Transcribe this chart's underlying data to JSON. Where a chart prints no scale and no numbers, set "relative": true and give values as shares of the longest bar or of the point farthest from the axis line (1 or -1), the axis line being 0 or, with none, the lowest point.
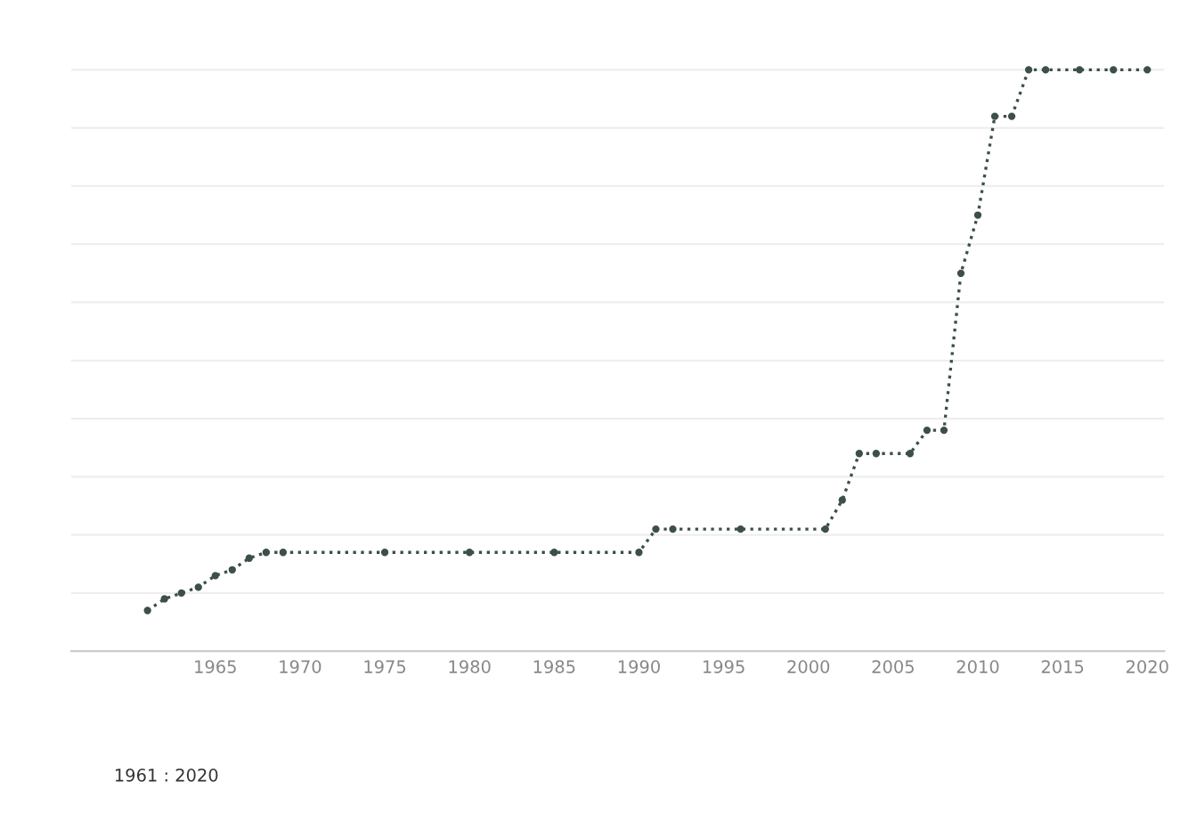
{
  "chart_data": {
    "type": "line",
    "relative": true,
    "x": [
      1961,
      1962,
      1963,
      1964,
      1965,
      1966,
      1967,
      1968,
      1969,
      1975,
      1980,
      1985,
      1990,
      1991,
      1992,
      1996,
      2001,
      2002,
      2003,
      2004,
      2006,
      2007,
      2008,
      2009,
      2010,
      2011,
      2012,
      2013,
      2014,
      2016,
      2018,
      2020
    ],
    "series": [
      {
        "color": "#3d4f4c",
        "values": [
          0.07,
          0.09,
          0.1,
          0.11,
          0.13,
          0.14,
          0.16,
          0.17,
          0.17,
          0.17,
          0.17,
          0.17,
          0.17,
          0.21,
          0.21,
          0.21,
          0.21,
          0.26,
          0.34,
          0.34,
          0.34,
          0.38,
          0.38,
          0.65,
          0.75,
          0.92,
          0.92,
          1,
          1,
          1,
          1,
          1
        ]
      }
    ],
    "xlim": [
      1956.5,
      2021
    ],
    "xticks": [
      1965,
      1970,
      1975,
      1980,
      1985,
      1990,
      1995,
      2000,
      2005,
      2010,
      2015,
      2020
    ],
    "grid": "y",
    "marker": "circle",
    "line_style": "dotted",
    "annotations": [
      "1961 : 2020"
    ]
  }
}
